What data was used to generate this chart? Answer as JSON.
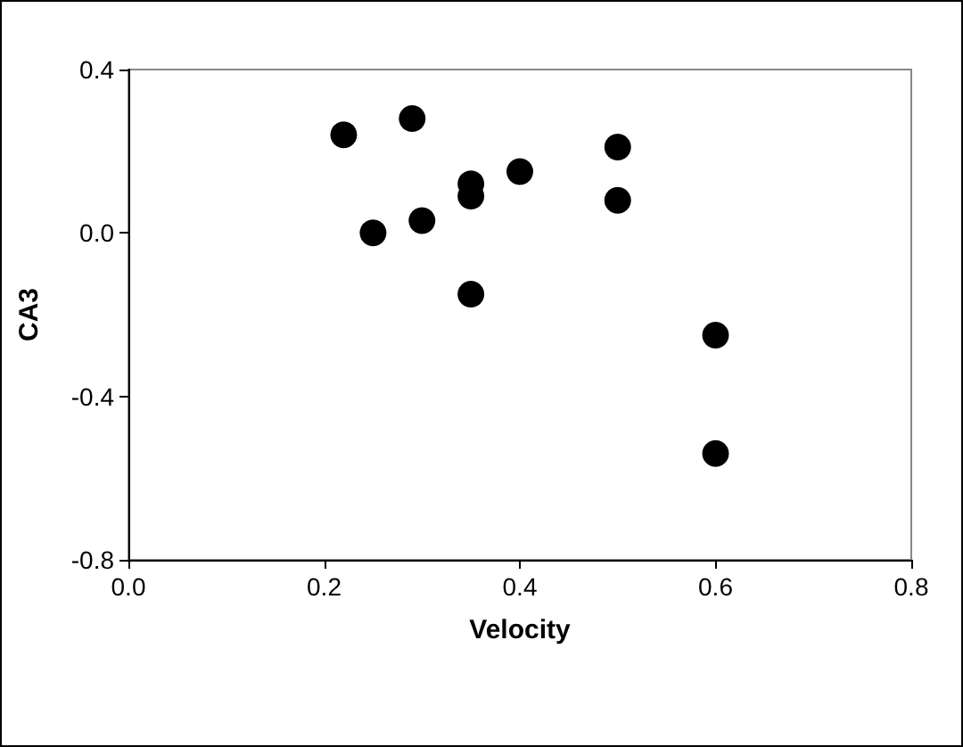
{
  "chart_data": {
    "type": "scatter",
    "xlabel": "Velocity",
    "ylabel": "CA3",
    "x": [
      0.22,
      0.29,
      0.25,
      0.3,
      0.35,
      0.35,
      0.35,
      0.4,
      0.5,
      0.5,
      0.6,
      0.6
    ],
    "values": [
      0.24,
      0.28,
      0.0,
      0.03,
      0.12,
      0.09,
      -0.15,
      0.15,
      0.21,
      0.08,
      -0.25,
      -0.54
    ],
    "color": "#000000",
    "marker": "circle",
    "xlim": [
      0.0,
      0.8
    ],
    "xticks": [
      {
        "value": 0,
        "label": "0.0"
      },
      0.2,
      0.4,
      0.6,
      0.8
    ],
    "ylim": [
      -0.8,
      0.4
    ],
    "yticks": [
      -0.8,
      -0.4,
      {
        "value": 0,
        "label": "0.0"
      },
      0.4
    ],
    "grid": false
  }
}
